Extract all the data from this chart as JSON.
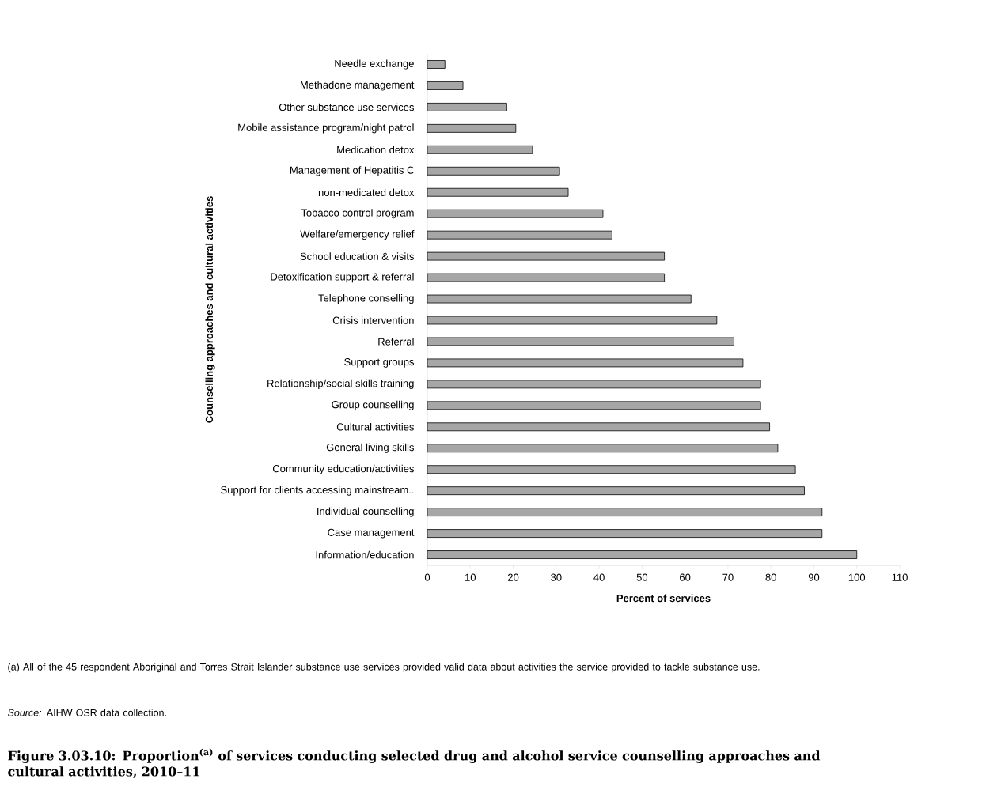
{
  "chart_data": {
    "type": "bar",
    "orientation": "horizontal",
    "title": "Figure 3.03.10: Proportion$^{(a)}$ of services conducting selected drug and alcohol service counselling approaches and cultural activities, 2010–11",
    "xlabel": "Percent of services",
    "ylabel": "Counselling approaches and cultural activities",
    "annotations": [
      "(a) All of the 45 respondent Aboriginal and Torres Strait Islander substance use services provided valid data about activities the service provided to tackle substance use.",
      "*Source:* AIHW OSR data collection."
    ],
    "categories": [
      "Needle exchange",
      "Methadone management",
      "Other substance use services",
      "Mobile assistance program/night patrol",
      "Medication detox",
      "Management of Hepatitis C",
      "non-medicated detox",
      "Tobacco control program",
      "Welfare/emergency relief",
      "School education & visits",
      "Detoxification support & referral",
      "Telephone conselling",
      "Crisis intervention",
      "Referral",
      "Support groups",
      "Relationship/social skills training",
      "Group counselling",
      "Cultural activities",
      "General living skills",
      "Community education/activities",
      "Support for clients accessing mainstream..",
      "Individual counselling",
      "Case management",
      "Information/education"
    ],
    "values": [
      4.1,
      8.3,
      18.5,
      20.6,
      24.5,
      30.8,
      32.8,
      40.9,
      43.0,
      55.2,
      55.2,
      61.4,
      67.4,
      71.4,
      73.5,
      77.6,
      77.6,
      79.7,
      81.6,
      85.7,
      87.8,
      91.9,
      91.9,
      100
    ],
    "color": "#a6a6a6",
    "xlim": [
      0,
      110
    ],
    "xticks": [
      0,
      10,
      20,
      30,
      40,
      50,
      60,
      70,
      80,
      90,
      100,
      110
    ],
    "grid": false
  }
}
